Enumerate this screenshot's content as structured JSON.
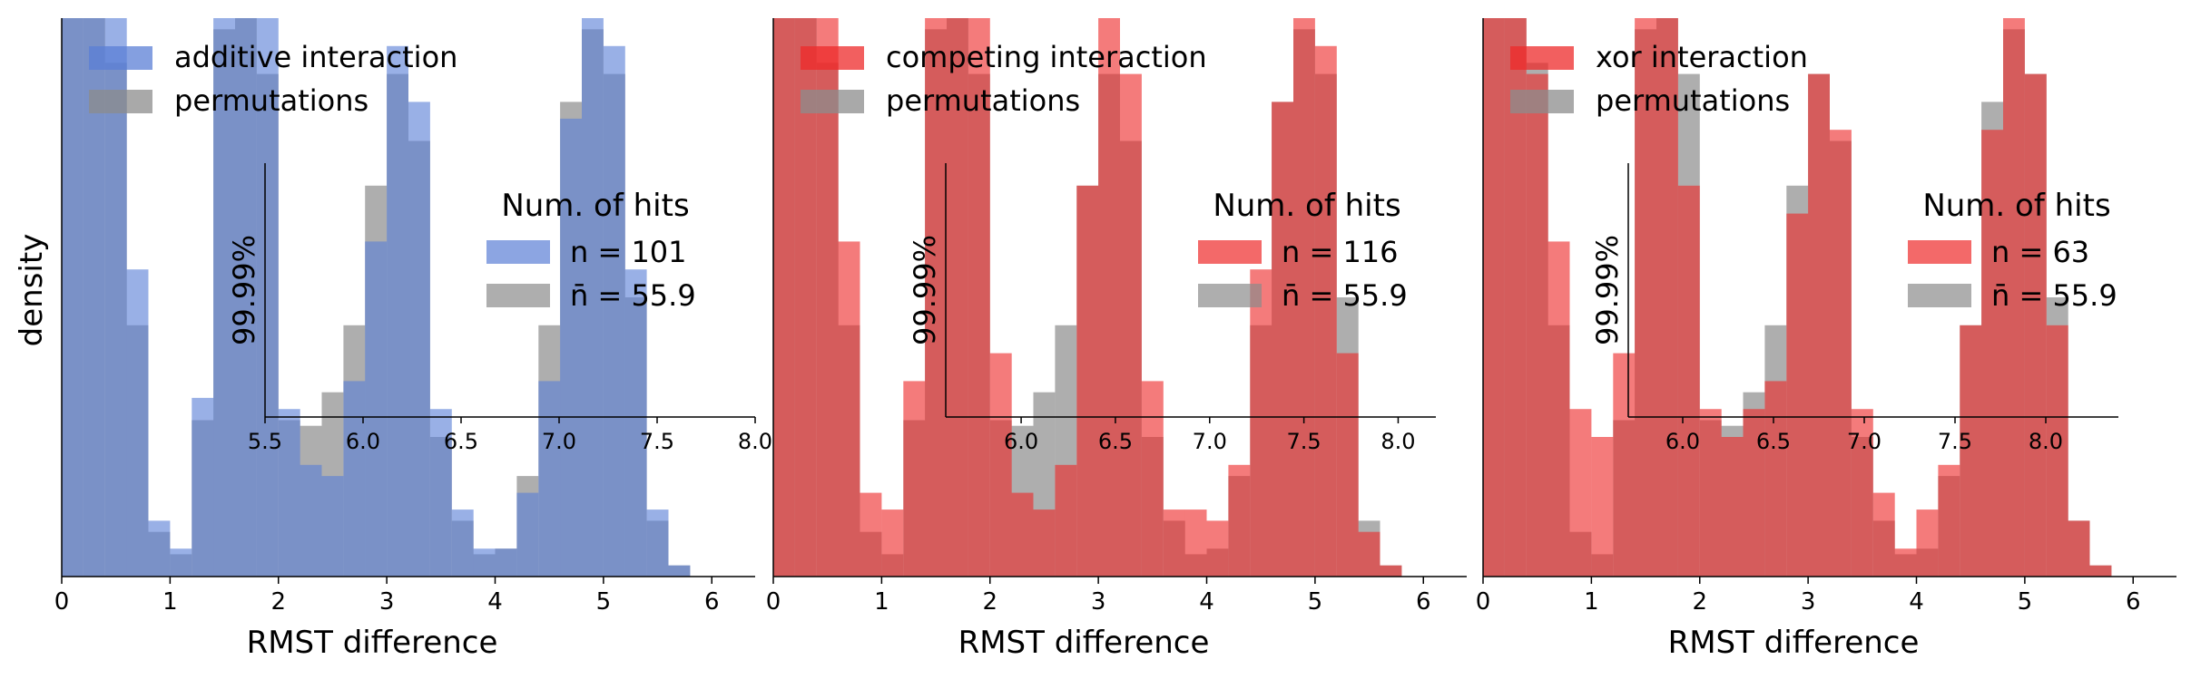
{
  "figure": {
    "ylabel": "density",
    "colors": {
      "blue": "#5b7fd6",
      "red": "#ee2a2a",
      "grey": "#8c8c8c",
      "dark_red": "#d62728"
    }
  },
  "chart_data": [
    {
      "type": "histogram",
      "xlabel": "RMST difference",
      "ylabel": "density",
      "xlim": [
        0,
        6.4
      ],
      "xticks": [
        "0",
        "1",
        "2",
        "3",
        "4",
        "5",
        "6"
      ],
      "legend_top": [
        "additive interaction",
        "permutations"
      ],
      "legend_title": "Num. of hits",
      "legend_hits": [
        "n = 101",
        "n̄ = 55.9"
      ],
      "hits": {
        "observed": 101,
        "permutations_mean": 55.9
      },
      "series": [
        {
          "name": "additive interaction",
          "color": "#5b7fd6",
          "x": [
            0.1,
            0.3,
            0.5,
            0.7,
            0.9,
            1.1,
            1.3,
            1.5,
            1.7,
            1.9,
            2.1,
            2.3,
            2.5,
            2.7,
            2.9,
            3.1,
            3.3,
            3.5,
            3.7,
            3.9,
            4.1,
            4.3,
            4.5,
            4.7,
            4.9,
            5.1,
            5.3,
            5.5,
            5.7,
            5.9
          ],
          "density": [
            1.0,
            1.0,
            1.0,
            0.55,
            0.1,
            0.05,
            0.32,
            1.0,
            1.0,
            1.0,
            0.3,
            0.2,
            0.18,
            0.35,
            0.6,
            0.95,
            0.85,
            0.3,
            0.12,
            0.05,
            0.05,
            0.15,
            0.35,
            0.82,
            1.0,
            0.95,
            0.55,
            0.12,
            0.02,
            0.0
          ]
        },
        {
          "name": "permutations",
          "color": "#8c8c8c",
          "x": [
            0.1,
            0.3,
            0.5,
            0.7,
            0.9,
            1.1,
            1.3,
            1.5,
            1.7,
            1.9,
            2.1,
            2.3,
            2.5,
            2.7,
            2.9,
            3.1,
            3.3,
            3.5,
            3.7,
            3.9,
            4.1,
            4.3,
            4.5,
            4.7,
            4.9,
            5.1,
            5.3,
            5.5,
            5.7,
            5.9
          ],
          "density": [
            1.0,
            1.0,
            0.92,
            0.45,
            0.08,
            0.04,
            0.28,
            0.98,
            1.0,
            0.9,
            0.28,
            0.27,
            0.33,
            0.45,
            0.7,
            0.9,
            0.78,
            0.25,
            0.1,
            0.04,
            0.05,
            0.18,
            0.45,
            0.85,
            0.98,
            0.9,
            0.5,
            0.1,
            0.02,
            0.0
          ]
        }
      ],
      "inset": {
        "ylabel": "99.99%",
        "xticks": [
          "5.5",
          "6.0",
          "6.5",
          "7.0",
          "7.5",
          "8.0"
        ],
        "xlim": [
          5.5,
          8.0
        ]
      }
    },
    {
      "type": "histogram",
      "xlabel": "RMST difference",
      "ylabel": "",
      "xlim": [
        0,
        6.4
      ],
      "xticks": [
        "0",
        "1",
        "2",
        "3",
        "4",
        "5",
        "6"
      ],
      "legend_top": [
        "competing interaction",
        "permutations"
      ],
      "legend_title": "Num. of hits",
      "legend_hits": [
        "n = 116",
        "n̄ = 55.9"
      ],
      "hits": {
        "observed": 116,
        "permutations_mean": 55.9
      },
      "series": [
        {
          "name": "competing interaction",
          "color": "#ee2a2a",
          "x": [
            0.1,
            0.3,
            0.5,
            0.7,
            0.9,
            1.1,
            1.3,
            1.5,
            1.7,
            1.9,
            2.1,
            2.3,
            2.5,
            2.7,
            2.9,
            3.1,
            3.3,
            3.5,
            3.7,
            3.9,
            4.1,
            4.3,
            4.5,
            4.7,
            4.9,
            5.1,
            5.3,
            5.5,
            5.7,
            5.9
          ],
          "density": [
            1.0,
            1.0,
            1.0,
            0.6,
            0.15,
            0.12,
            0.35,
            1.0,
            1.0,
            1.0,
            0.4,
            0.15,
            0.12,
            0.2,
            0.7,
            1.0,
            0.9,
            0.35,
            0.12,
            0.12,
            0.1,
            0.2,
            0.55,
            0.85,
            1.0,
            0.95,
            0.4,
            0.08,
            0.02,
            0.0
          ]
        },
        {
          "name": "permutations",
          "color": "#8c8c8c",
          "x": [
            0.1,
            0.3,
            0.5,
            0.7,
            0.9,
            1.1,
            1.3,
            1.5,
            1.7,
            1.9,
            2.1,
            2.3,
            2.5,
            2.7,
            2.9,
            3.1,
            3.3,
            3.5,
            3.7,
            3.9,
            4.1,
            4.3,
            4.5,
            4.7,
            4.9,
            5.1,
            5.3,
            5.5,
            5.7,
            5.9
          ],
          "density": [
            1.0,
            1.0,
            0.92,
            0.45,
            0.08,
            0.04,
            0.28,
            0.98,
            1.0,
            0.9,
            0.28,
            0.27,
            0.33,
            0.45,
            0.7,
            0.9,
            0.78,
            0.25,
            0.1,
            0.04,
            0.05,
            0.18,
            0.45,
            0.85,
            0.98,
            0.9,
            0.5,
            0.1,
            0.02,
            0.0
          ]
        }
      ],
      "inset": {
        "ylabel": "99.99%",
        "xticks": [
          "6.0",
          "6.5",
          "7.0",
          "7.5",
          "8.0"
        ],
        "xlim": [
          5.6,
          8.2
        ]
      }
    },
    {
      "type": "histogram",
      "xlabel": "RMST difference",
      "ylabel": "",
      "xlim": [
        0,
        6.4
      ],
      "xticks": [
        "0",
        "1",
        "2",
        "3",
        "4",
        "5",
        "6"
      ],
      "legend_top": [
        "xor interaction",
        "permutations"
      ],
      "legend_title": "Num. of hits",
      "legend_hits": [
        "n = 63",
        "n̄ = 55.9"
      ],
      "hits": {
        "observed": 63,
        "permutations_mean": 55.9
      },
      "series": [
        {
          "name": "xor interaction",
          "color": "#ee2a2a",
          "x": [
            0.1,
            0.3,
            0.5,
            0.7,
            0.9,
            1.1,
            1.3,
            1.5,
            1.7,
            1.9,
            2.1,
            2.3,
            2.5,
            2.7,
            2.9,
            3.1,
            3.3,
            3.5,
            3.7,
            3.9,
            4.1,
            4.3,
            4.5,
            4.7,
            4.9,
            5.1,
            5.3,
            5.5,
            5.7,
            5.9
          ],
          "density": [
            1.0,
            1.0,
            0.9,
            0.6,
            0.3,
            0.25,
            0.4,
            1.0,
            1.0,
            0.7,
            0.3,
            0.25,
            0.3,
            0.35,
            0.65,
            0.9,
            0.8,
            0.3,
            0.15,
            0.05,
            0.12,
            0.2,
            0.45,
            0.8,
            1.0,
            0.9,
            0.45,
            0.1,
            0.02,
            0.0
          ]
        },
        {
          "name": "permutations",
          "color": "#8c8c8c",
          "x": [
            0.1,
            0.3,
            0.5,
            0.7,
            0.9,
            1.1,
            1.3,
            1.5,
            1.7,
            1.9,
            2.1,
            2.3,
            2.5,
            2.7,
            2.9,
            3.1,
            3.3,
            3.5,
            3.7,
            3.9,
            4.1,
            4.3,
            4.5,
            4.7,
            4.9,
            5.1,
            5.3,
            5.5,
            5.7,
            5.9
          ],
          "density": [
            1.0,
            1.0,
            0.92,
            0.45,
            0.08,
            0.04,
            0.28,
            0.98,
            1.0,
            0.9,
            0.28,
            0.27,
            0.33,
            0.45,
            0.7,
            0.9,
            0.78,
            0.25,
            0.1,
            0.04,
            0.05,
            0.18,
            0.45,
            0.85,
            0.98,
            0.9,
            0.5,
            0.1,
            0.02,
            0.0
          ]
        }
      ],
      "inset": {
        "ylabel": "99.99%",
        "xticks": [
          "6.0",
          "6.5",
          "7.0",
          "7.5",
          "8.0"
        ],
        "xlim": [
          5.7,
          8.4
        ]
      }
    }
  ]
}
